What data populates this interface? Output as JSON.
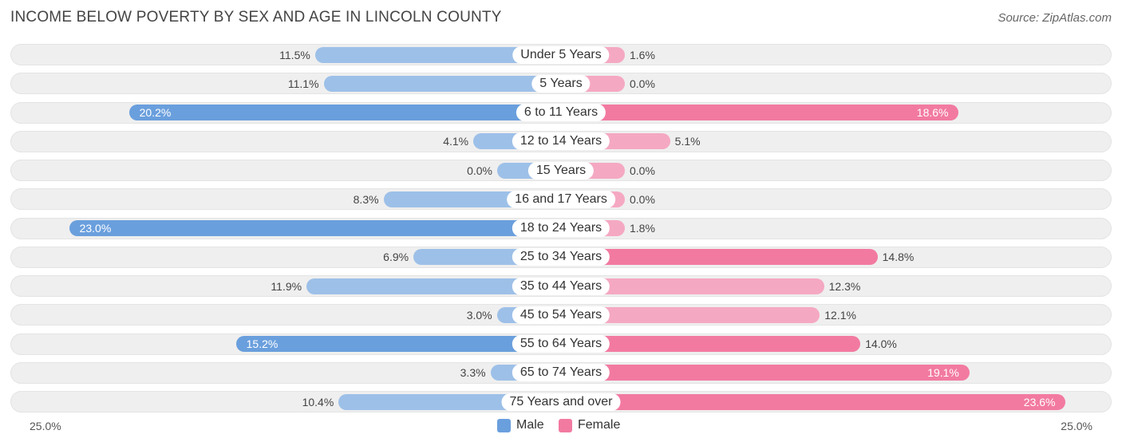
{
  "title": "INCOME BELOW POVERTY BY SEX AND AGE IN LINCOLN COUNTY",
  "source": "Source: ZipAtlas.com",
  "chart_data": {
    "type": "bar",
    "orientation": "horizontal-diverging",
    "title": "INCOME BELOW POVERTY BY SEX AND AGE IN LINCOLN COUNTY",
    "categories": [
      "Under 5 Years",
      "5 Years",
      "6 to 11 Years",
      "12 to 14 Years",
      "15 Years",
      "16 and 17 Years",
      "18 to 24 Years",
      "25 to 34 Years",
      "35 to 44 Years",
      "45 to 54 Years",
      "55 to 64 Years",
      "65 to 74 Years",
      "75 Years and over"
    ],
    "series": [
      {
        "name": "Male",
        "color": "#6a9fdd",
        "values": [
          11.5,
          11.1,
          20.2,
          4.1,
          0.0,
          8.3,
          23.0,
          6.9,
          11.9,
          3.0,
          15.2,
          3.3,
          10.4
        ],
        "labels": [
          "11.5%",
          "11.1%",
          "20.2%",
          "4.1%",
          "0.0%",
          "8.3%",
          "23.0%",
          "6.9%",
          "11.9%",
          "3.0%",
          "15.2%",
          "3.3%",
          "10.4%"
        ]
      },
      {
        "name": "Female",
        "color": "#f27aa1",
        "values": [
          1.6,
          0.0,
          18.6,
          5.1,
          0.0,
          0.0,
          1.8,
          14.8,
          12.3,
          12.1,
          14.0,
          19.1,
          23.6
        ],
        "labels": [
          "1.6%",
          "0.0%",
          "18.6%",
          "5.1%",
          "0.0%",
          "0.0%",
          "1.8%",
          "14.8%",
          "12.3%",
          "12.1%",
          "14.0%",
          "19.1%",
          "23.6%"
        ]
      }
    ],
    "axis": {
      "min_label": "25.0%",
      "max_label": "25.0%",
      "max": 25.0
    },
    "legend": {
      "position": "bottom-center",
      "male_label": "Male",
      "female_label": "Female"
    }
  }
}
